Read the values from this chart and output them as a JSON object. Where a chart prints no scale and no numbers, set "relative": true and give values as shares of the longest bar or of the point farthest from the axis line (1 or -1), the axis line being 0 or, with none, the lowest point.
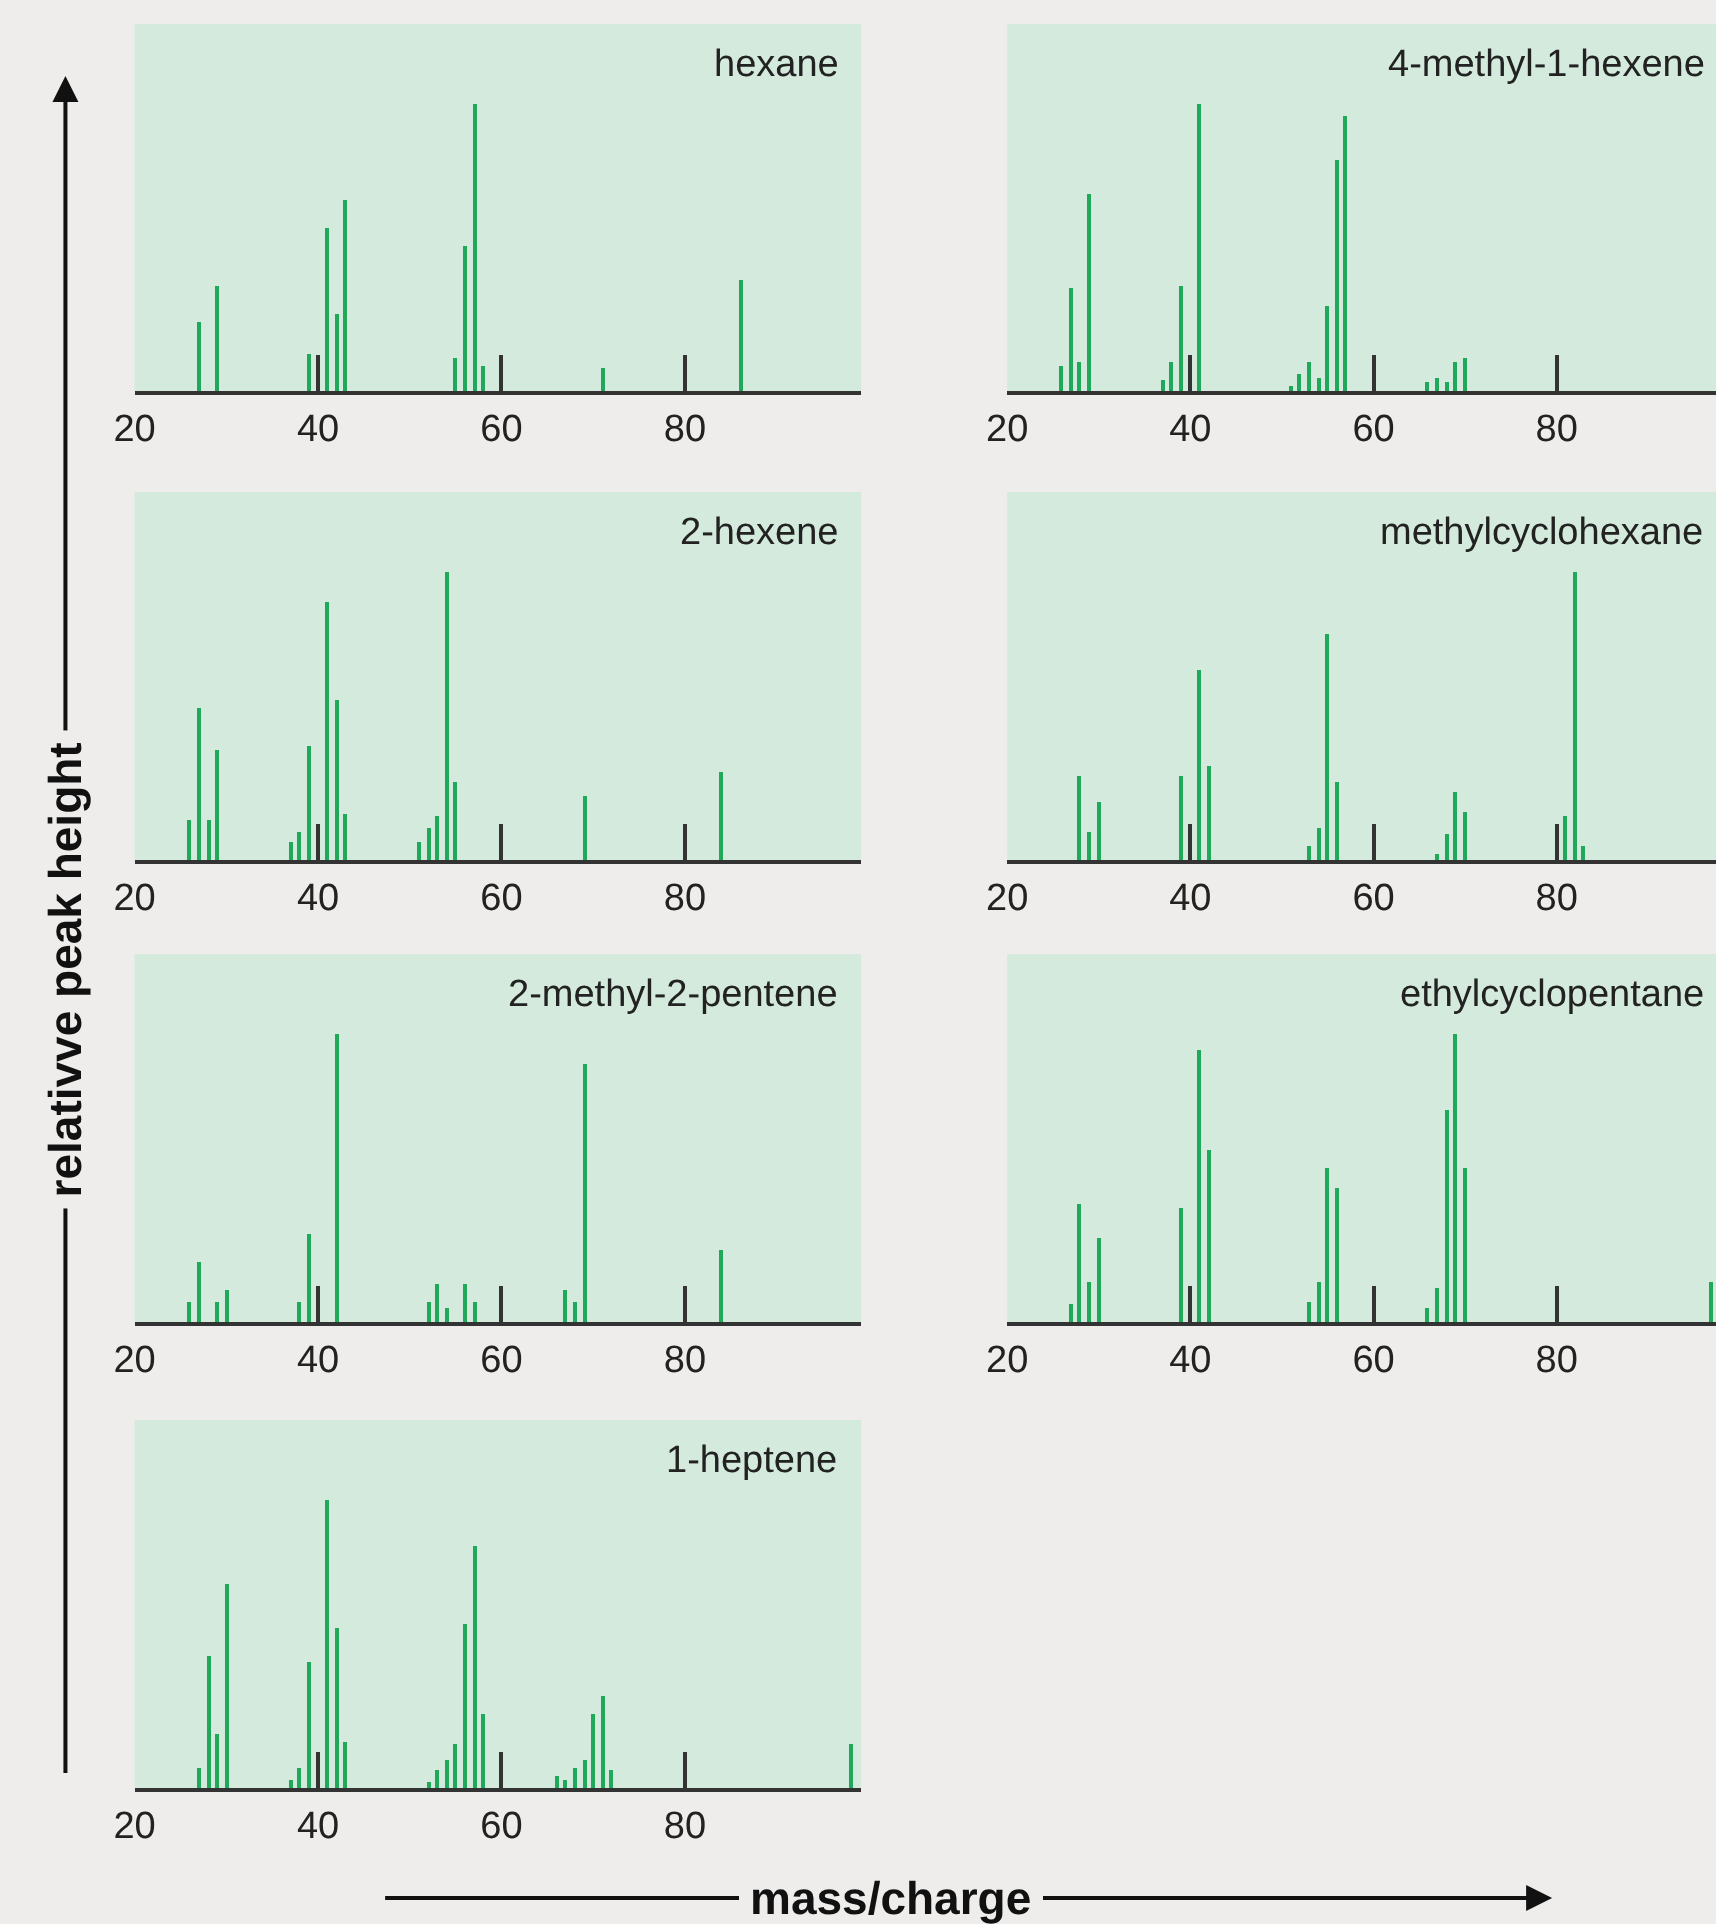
{
  "chart_data": [
    {
      "type": "bar",
      "title": "hexane",
      "annotations": [
        "relativve peak height",
        "mass/charge"
      ],
      "relative": true,
      "color": "#1fa85a",
      "xlim": [
        20,
        99.2
      ],
      "xticks": [
        20,
        40,
        60,
        80
      ],
      "x": [
        27,
        29,
        39,
        41,
        42,
        43,
        55,
        56,
        57,
        58,
        71,
        86
      ],
      "values": [
        0.24,
        0.37,
        0.13,
        0.57,
        0.27,
        0.67,
        0.12,
        0.51,
        1,
        0.09,
        0.08,
        0.39
      ]
    },
    {
      "type": "bar",
      "title": "4-methyl-1-hexene",
      "relative": true,
      "color": "#1fa85a",
      "xlim": [
        20,
        97.4
      ],
      "xticks": [
        20,
        40,
        60,
        80
      ],
      "x": [
        26,
        27,
        28,
        29,
        37,
        38,
        39,
        41,
        51,
        52,
        53,
        54,
        55,
        56,
        57,
        66,
        67,
        68,
        69,
        70
      ],
      "values": [
        0.09,
        0.36,
        0.1,
        0.69,
        0.04,
        0.1,
        0.37,
        1,
        0.02,
        0.06,
        0.1,
        0.05,
        0.3,
        0.81,
        0.96,
        0.03,
        0.05,
        0.03,
        0.1,
        0.12
      ]
    },
    {
      "type": "bar",
      "title": "2-hexene",
      "relative": true,
      "color": "#1fa85a",
      "xlim": [
        20,
        99.2
      ],
      "xticks": [
        20,
        40,
        60,
        80
      ],
      "x": [
        26,
        27,
        28,
        29,
        37,
        38,
        39,
        41,
        42,
        43,
        51,
        52,
        53,
        54,
        55,
        69,
        84
      ],
      "values": [
        0.14,
        0.53,
        0.14,
        0.38,
        0.06,
        0.1,
        0.4,
        0.9,
        0.56,
        0.16,
        0.06,
        0.11,
        0.15,
        1,
        0.27,
        0.22,
        0.31
      ]
    },
    {
      "type": "bar",
      "title": "methylcyclohexane",
      "relative": true,
      "color": "#1fa85a",
      "xlim": [
        20,
        97.4
      ],
      "xticks": [
        20,
        40,
        60,
        80
      ],
      "x": [
        28,
        29,
        30,
        39,
        41,
        42,
        53,
        54,
        55,
        56,
        67,
        68,
        69,
        70,
        81,
        82,
        83
      ],
      "values": [
        0.29,
        0.1,
        0.2,
        0.29,
        0.66,
        0.33,
        0.05,
        0.11,
        0.79,
        0.27,
        0.02,
        0.09,
        0.24,
        0.17,
        0.15,
        1,
        0.05
      ]
    },
    {
      "type": "bar",
      "title": "2-methyl-2-pentene",
      "relative": true,
      "color": "#1fa85a",
      "xlim": [
        20,
        99.2
      ],
      "xticks": [
        20,
        40,
        60,
        80
      ],
      "x": [
        26,
        27,
        29,
        30,
        38,
        39,
        42,
        52,
        53,
        54,
        56,
        57,
        67,
        68,
        69,
        84
      ],
      "values": [
        0.07,
        0.21,
        0.07,
        0.11,
        0.07,
        0.31,
        1,
        0.07,
        0.13,
        0.05,
        0.13,
        0.07,
        0.11,
        0.07,
        0.9,
        0.25
      ]
    },
    {
      "type": "bar",
      "title": "ethylcyclopentane",
      "relative": true,
      "color": "#1fa85a",
      "xlim": [
        20,
        97.4
      ],
      "xticks": [
        20,
        40,
        60,
        80
      ],
      "x": [
        27,
        28,
        29,
        30,
        39,
        41,
        42,
        53,
        54,
        55,
        56,
        66,
        67,
        68,
        69,
        70,
        97
      ],
      "values": [
        0.06,
        0.41,
        0.14,
        0.29,
        0.4,
        0.95,
        0.6,
        0.07,
        0.14,
        0.54,
        0.47,
        0.05,
        0.12,
        0.74,
        1,
        0.54,
        0.14
      ]
    },
    {
      "type": "bar",
      "title": "1-heptene",
      "relative": true,
      "color": "#1fa85a",
      "xlim": [
        20,
        99.2
      ],
      "xticks": [
        20,
        40,
        60,
        80
      ],
      "x": [
        27,
        28,
        29,
        30,
        37,
        38,
        39,
        41,
        42,
        43,
        52,
        53,
        54,
        55,
        56,
        57,
        58,
        66,
        67,
        68,
        69,
        70,
        71,
        72,
        98
      ],
      "values": [
        0.07,
        0.46,
        0.19,
        0.71,
        0.03,
        0.07,
        0.44,
        1,
        0.56,
        0.16,
        0.02,
        0.06,
        0.1,
        0.15,
        0.57,
        0.84,
        0.26,
        0.04,
        0.03,
        0.07,
        0.1,
        0.26,
        0.32,
        0.06,
        0.15
      ]
    }
  ]
}
